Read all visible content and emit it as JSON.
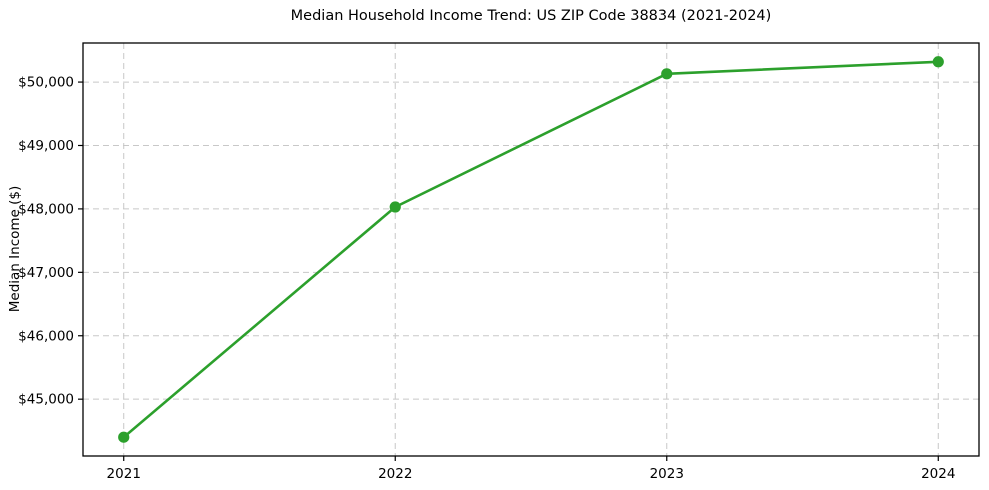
{
  "chart_data": {
    "type": "line",
    "title": "Median Household Income Trend: US ZIP Code 38834 (2021-2024)",
    "xlabel": "",
    "ylabel": "Median Income ($)",
    "x": [
      2021,
      2022,
      2023,
      2024
    ],
    "series": [
      {
        "name": "Median Household Income",
        "values": [
          44400,
          48030,
          50130,
          50320
        ]
      }
    ],
    "xlim": [
      2020.85,
      2024.15
    ],
    "ylim": [
      44104,
      50616
    ],
    "xticks": [
      2021,
      2022,
      2023,
      2024
    ],
    "xtick_labels": [
      "2021",
      "2022",
      "2023",
      "2024"
    ],
    "yticks": [
      45000,
      46000,
      47000,
      48000,
      49000,
      50000
    ],
    "ytick_labels": [
      "$45,000",
      "$46,000",
      "$47,000",
      "$48,000",
      "$49,000",
      "$50,000"
    ],
    "grid": true,
    "grid_style": "dashed",
    "legend": false,
    "colors": {
      "line": "#2ca02c",
      "marker": "#2ca02c",
      "grid": "#c8c8c8",
      "spine": "#000000",
      "text": "#000000",
      "background": "#ffffff"
    }
  }
}
